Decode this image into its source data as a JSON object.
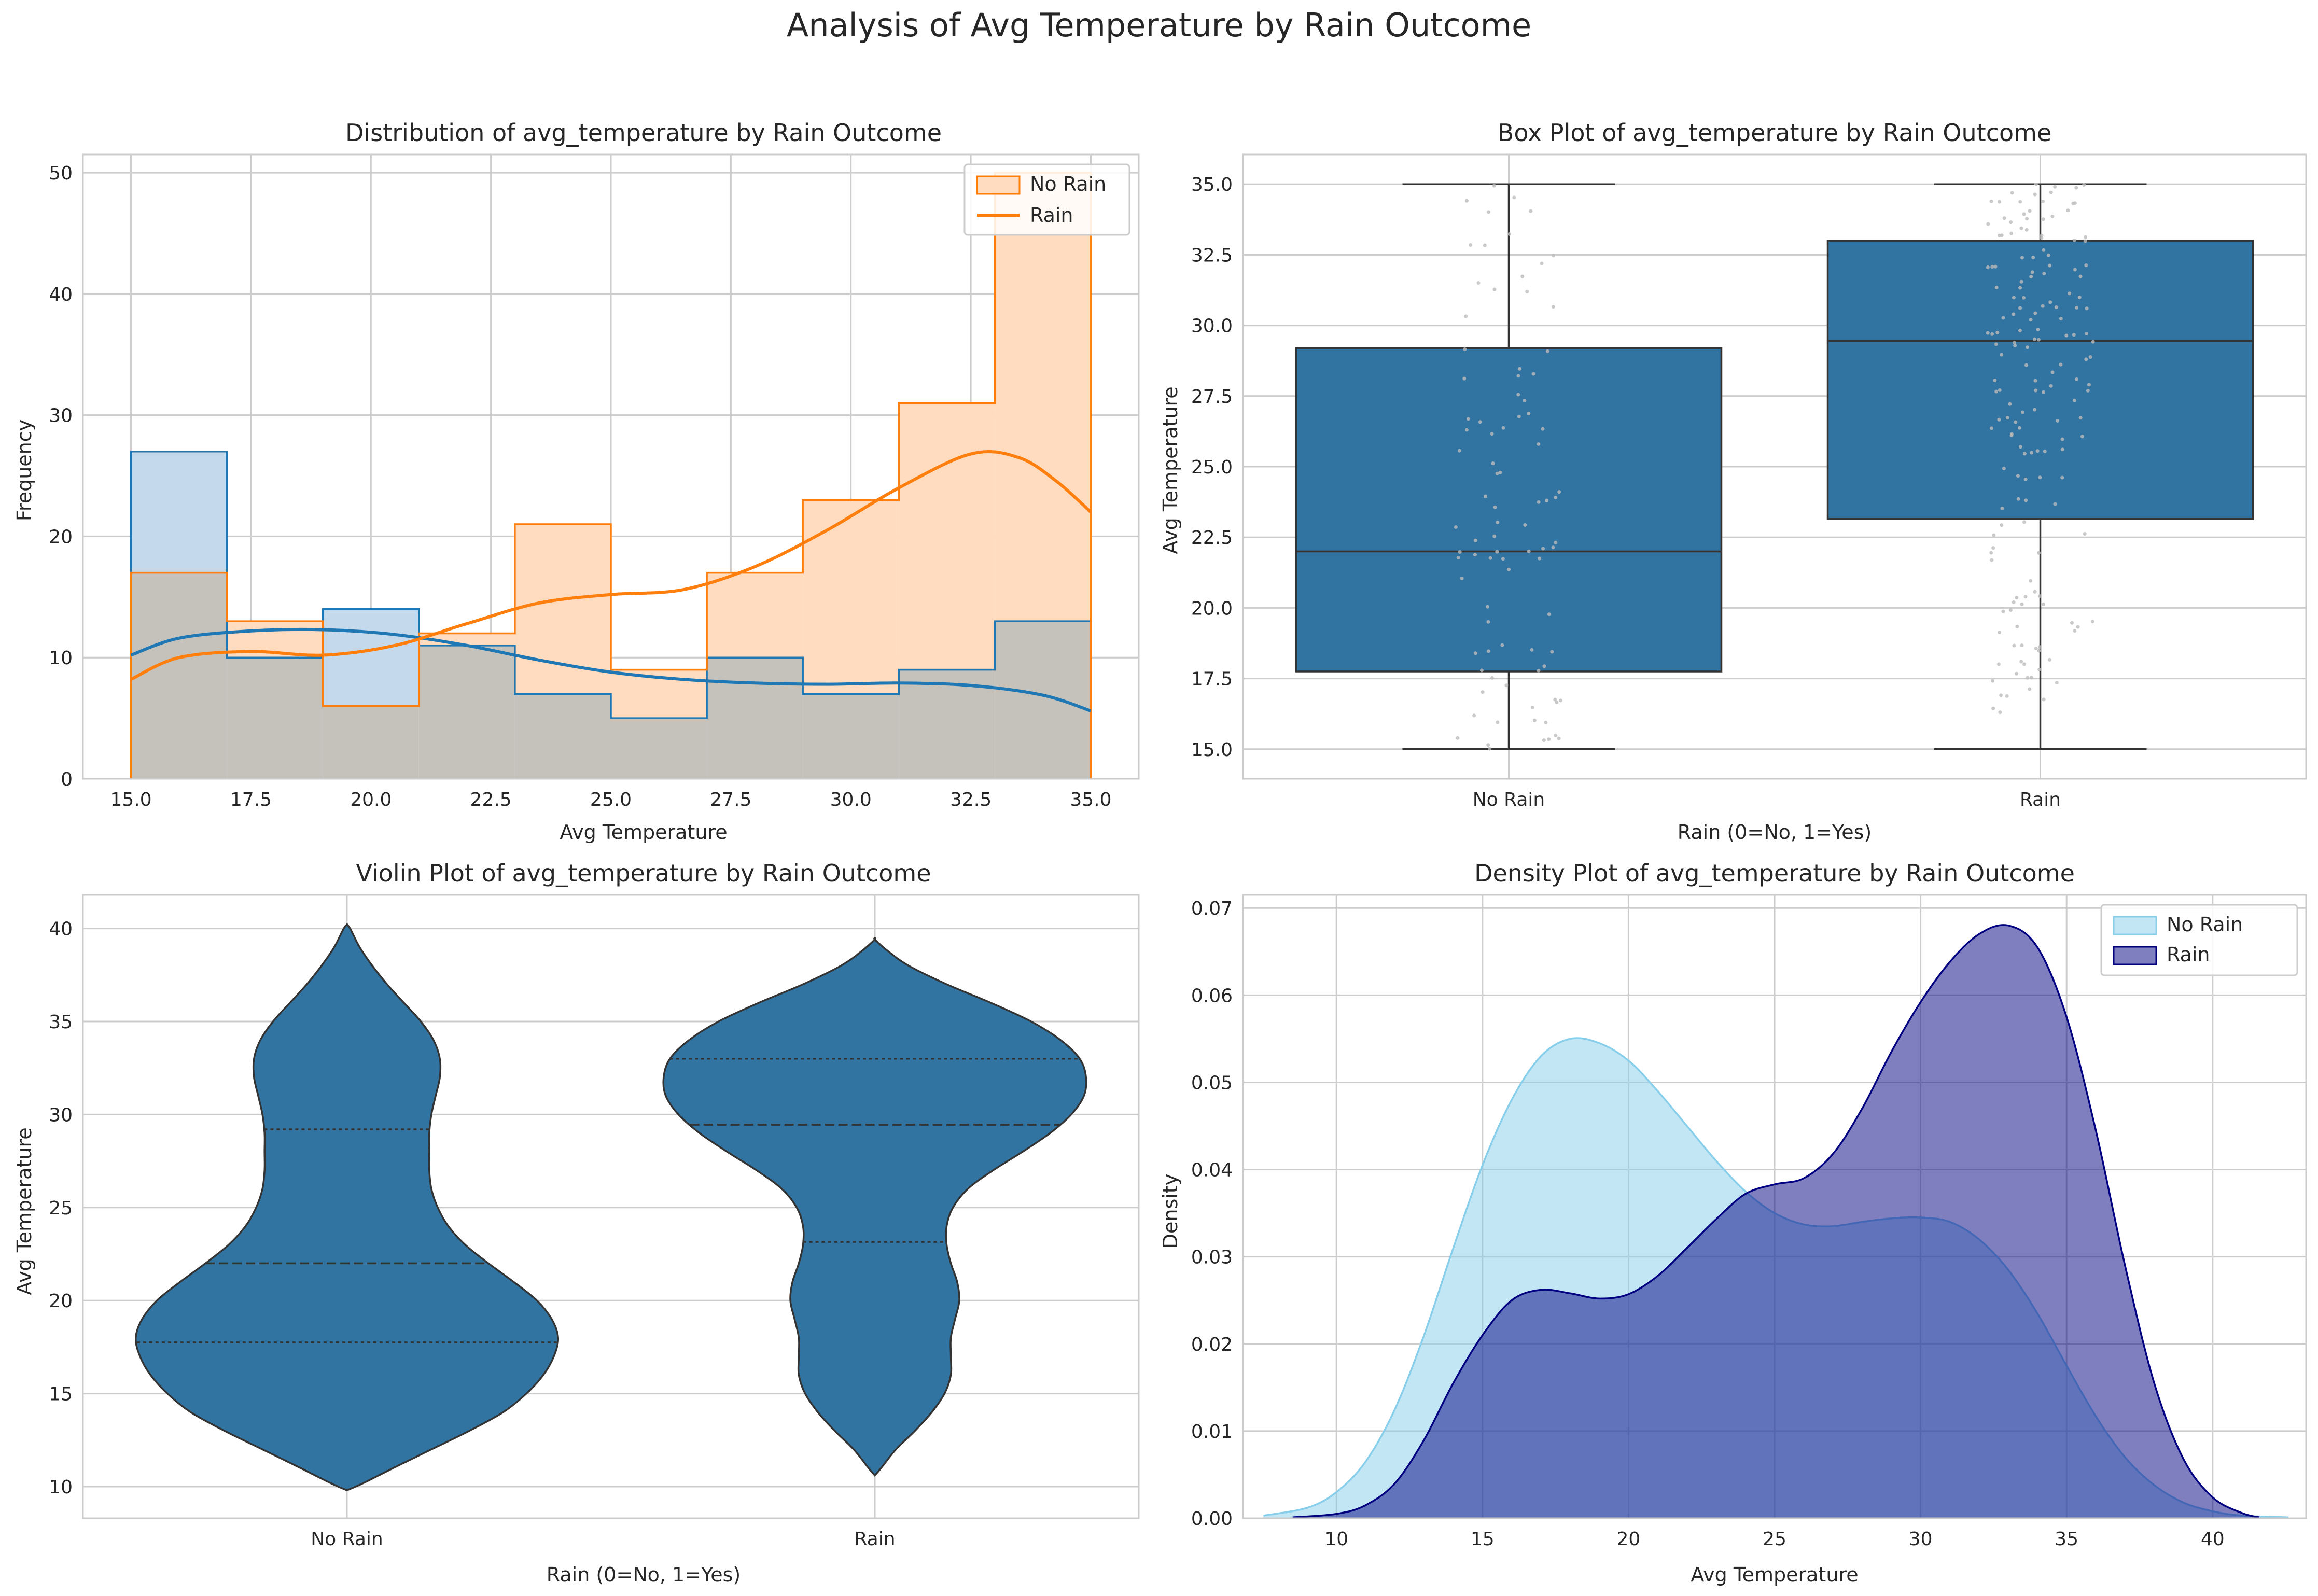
{
  "suptitle": "Analysis of Avg Temperature by Rain Outcome",
  "colors": {
    "hist_no_rain_fill": "#ffdcbf",
    "hist_no_rain_edge": "#ff7f0e",
    "hist_rain_fill": "#c5d9ec",
    "hist_rain_edge": "#1f77b4",
    "hist_overlap": "#c4c2bb",
    "box_fill": "#3274a1",
    "box_line": "#333333",
    "jitter": "#bbbbbb",
    "kde_no_rain_fill": "#87ceeb",
    "kde_no_rain_edge": "#87ceeb",
    "kde_rain_fill": "#000080",
    "kde_rain_edge": "#000080",
    "grid": "#cccccc",
    "text": "#262626"
  },
  "chart_data": [
    {
      "type": "bar",
      "title": "Distribution of avg_temperature by Rain Outcome",
      "xlabel": "Avg Temperature",
      "ylabel": "Frequency",
      "xlim": [
        14.0,
        36.0
      ],
      "ylim": [
        0,
        51.5
      ],
      "xticks": [
        "15.0",
        "17.5",
        "20.0",
        "22.5",
        "25.0",
        "27.5",
        "30.0",
        "32.5",
        "35.0"
      ],
      "yticks": [
        "0",
        "10",
        "20",
        "30",
        "40",
        "50"
      ],
      "bin_edges": [
        15,
        17,
        19,
        21,
        23,
        25,
        27,
        29,
        31,
        33,
        35
      ],
      "series": [
        {
          "name": "No Rain",
          "values": [
            27,
            10,
            14,
            11,
            7,
            5,
            10,
            7,
            9,
            13
          ],
          "kde": [
            [
              15,
              10.2
            ],
            [
              16,
              11.6
            ],
            [
              17.5,
              12.2
            ],
            [
              19,
              12.3
            ],
            [
              20.5,
              11.9
            ],
            [
              22,
              11.0
            ],
            [
              23.5,
              9.8
            ],
            [
              25,
              8.8
            ],
            [
              26.5,
              8.2
            ],
            [
              28,
              7.9
            ],
            [
              29.5,
              7.8
            ],
            [
              31,
              7.9
            ],
            [
              32.5,
              7.7
            ],
            [
              34,
              6.9
            ],
            [
              35,
              5.6
            ]
          ]
        },
        {
          "name": "Rain",
          "values": [
            17,
            13,
            6,
            12,
            21,
            9,
            17,
            23,
            31,
            50
          ],
          "kde": [
            [
              15,
              8.2
            ],
            [
              16,
              10.0
            ],
            [
              17.5,
              10.5
            ],
            [
              19,
              10.2
            ],
            [
              20.5,
              11.0
            ],
            [
              22,
              12.8
            ],
            [
              23.5,
              14.5
            ],
            [
              25,
              15.2
            ],
            [
              26.5,
              15.6
            ],
            [
              28,
              17.5
            ],
            [
              29.5,
              20.5
            ],
            [
              31,
              24.0
            ],
            [
              32.5,
              26.8
            ],
            [
              33.5,
              26.5
            ],
            [
              34.3,
              24.5
            ],
            [
              35,
              22.0
            ]
          ]
        }
      ],
      "legend": [
        {
          "label": "No Rain"
        },
        {
          "label": "Rain"
        }
      ],
      "legend_loc": "upper right",
      "grid": true
    },
    {
      "type": "box",
      "title": "Box Plot of avg_temperature by Rain Outcome",
      "xlabel": "Rain (0=No, 1=Yes)",
      "ylabel": "Avg Temperature",
      "categories": [
        "No Rain",
        "Rain"
      ],
      "ylim": [
        13.95,
        36.05
      ],
      "yticks": [
        "15.0",
        "17.5",
        "20.0",
        "22.5",
        "25.0",
        "27.5",
        "30.0",
        "32.5",
        "35.0"
      ],
      "boxes": [
        {
          "min": 15.0,
          "q1": 17.75,
          "median": 22.0,
          "q3": 29.2,
          "max": 35.0
        },
        {
          "min": 15.0,
          "q1": 23.15,
          "median": 29.45,
          "q3": 33.0,
          "max": 35.0
        }
      ],
      "grid": true
    },
    {
      "type": "violin",
      "title": "Violin Plot of avg_temperature by Rain Outcome",
      "xlabel": "Rain (0=No, 1=Yes)",
      "ylabel": "Avg Temperature",
      "categories": [
        "No Rain",
        "Rain"
      ],
      "ylim": [
        8.3,
        41.8
      ],
      "yticks": [
        "10",
        "15",
        "20",
        "25",
        "30",
        "35",
        "40"
      ],
      "violins": [
        {
          "q1": 17.75,
          "median": 22.0,
          "q3": 29.2,
          "profile": [
            [
              9.8,
              0.0
            ],
            [
              10.2,
              0.08
            ],
            [
              11.0,
              0.22
            ],
            [
              12.0,
              0.4
            ],
            [
              13.0,
              0.58
            ],
            [
              14.0,
              0.74
            ],
            [
              15.0,
              0.85
            ],
            [
              16.0,
              0.93
            ],
            [
              17.0,
              0.98
            ],
            [
              18.0,
              1.0
            ],
            [
              19.0,
              0.97
            ],
            [
              20.0,
              0.9
            ],
            [
              21.0,
              0.79
            ],
            [
              22.0,
              0.67
            ],
            [
              23.0,
              0.56
            ],
            [
              24.0,
              0.48
            ],
            [
              25.0,
              0.43
            ],
            [
              26.0,
              0.4
            ],
            [
              27.0,
              0.39
            ],
            [
              28.0,
              0.39
            ],
            [
              29.0,
              0.39
            ],
            [
              30.0,
              0.4
            ],
            [
              31.0,
              0.42
            ],
            [
              32.0,
              0.44
            ],
            [
              33.0,
              0.44
            ],
            [
              34.0,
              0.41
            ],
            [
              35.0,
              0.35
            ],
            [
              36.0,
              0.27
            ],
            [
              37.0,
              0.19
            ],
            [
              38.0,
              0.12
            ],
            [
              39.0,
              0.06
            ],
            [
              40.0,
              0.015
            ],
            [
              40.2,
              0.0
            ]
          ]
        },
        {
          "q1": 23.15,
          "median": 29.45,
          "q3": 33.0,
          "profile": [
            [
              10.6,
              0.0
            ],
            [
              11.0,
              0.03
            ],
            [
              12.0,
              0.1
            ],
            [
              13.0,
              0.19
            ],
            [
              14.0,
              0.27
            ],
            [
              15.0,
              0.33
            ],
            [
              16.0,
              0.36
            ],
            [
              17.0,
              0.36
            ],
            [
              18.0,
              0.36
            ],
            [
              19.0,
              0.38
            ],
            [
              20.0,
              0.4
            ],
            [
              21.0,
              0.39
            ],
            [
              22.0,
              0.36
            ],
            [
              23.0,
              0.34
            ],
            [
              24.0,
              0.34
            ],
            [
              25.0,
              0.37
            ],
            [
              26.0,
              0.44
            ],
            [
              27.0,
              0.56
            ],
            [
              28.0,
              0.7
            ],
            [
              29.0,
              0.83
            ],
            [
              30.0,
              0.93
            ],
            [
              31.0,
              0.99
            ],
            [
              32.0,
              1.0
            ],
            [
              33.0,
              0.97
            ],
            [
              34.0,
              0.88
            ],
            [
              35.0,
              0.74
            ],
            [
              36.0,
              0.55
            ],
            [
              37.0,
              0.34
            ],
            [
              38.0,
              0.16
            ],
            [
              38.8,
              0.06
            ],
            [
              39.4,
              0.0
            ]
          ]
        }
      ],
      "grid": true
    },
    {
      "type": "area",
      "title": "Density Plot of avg_temperature by Rain Outcome",
      "xlabel": "Avg Temperature",
      "ylabel": "Density",
      "xlim": [
        6.8,
        43.2
      ],
      "ylim": [
        0,
        0.0715
      ],
      "xticks": [
        "10",
        "15",
        "20",
        "25",
        "30",
        "35",
        "40"
      ],
      "yticks": [
        "0.00",
        "0.01",
        "0.02",
        "0.03",
        "0.04",
        "0.05",
        "0.06",
        "0.07"
      ],
      "series": [
        {
          "name": "No Rain",
          "points": [
            [
              7.5,
              0.0003
            ],
            [
              9,
              0.0012
            ],
            [
              10,
              0.003
            ],
            [
              11,
              0.0065
            ],
            [
              12,
              0.0125
            ],
            [
              13,
              0.021
            ],
            [
              14,
              0.031
            ],
            [
              15,
              0.0405
            ],
            [
              16,
              0.048
            ],
            [
              17,
              0.053
            ],
            [
              18,
              0.055
            ],
            [
              19,
              0.0545
            ],
            [
              20,
              0.0525
            ],
            [
              21,
              0.049
            ],
            [
              22,
              0.045
            ],
            [
              23,
              0.041
            ],
            [
              24,
              0.0375
            ],
            [
              25,
              0.035
            ],
            [
              26,
              0.0337
            ],
            [
              27,
              0.0335
            ],
            [
              28,
              0.034
            ],
            [
              29,
              0.0344
            ],
            [
              30,
              0.0345
            ],
            [
              31,
              0.034
            ],
            [
              32,
              0.032
            ],
            [
              33,
              0.0285
            ],
            [
              34,
              0.0235
            ],
            [
              35,
              0.0175
            ],
            [
              36,
              0.0117
            ],
            [
              37,
              0.007
            ],
            [
              38,
              0.0038
            ],
            [
              39,
              0.0018
            ],
            [
              40,
              0.0008
            ],
            [
              41,
              0.0003
            ],
            [
              42.6,
              0.0001
            ]
          ]
        },
        {
          "name": "Rain",
          "points": [
            [
              8.5,
              0.0001
            ],
            [
              10,
              0.0005
            ],
            [
              11,
              0.0015
            ],
            [
              12,
              0.004
            ],
            [
              13,
              0.009
            ],
            [
              14,
              0.0155
            ],
            [
              15,
              0.021
            ],
            [
              16,
              0.025
            ],
            [
              17,
              0.0262
            ],
            [
              18,
              0.0258
            ],
            [
              19,
              0.0252
            ],
            [
              20,
              0.0257
            ],
            [
              21,
              0.0278
            ],
            [
              22,
              0.031
            ],
            [
              23,
              0.0343
            ],
            [
              24,
              0.0372
            ],
            [
              25,
              0.0383
            ],
            [
              26,
              0.039
            ],
            [
              27,
              0.0418
            ],
            [
              28,
              0.047
            ],
            [
              29,
              0.0535
            ],
            [
              30,
              0.0592
            ],
            [
              31,
              0.0638
            ],
            [
              32,
              0.067
            ],
            [
              33,
              0.068
            ],
            [
              34,
              0.0655
            ],
            [
              35,
              0.0575
            ],
            [
              36,
              0.0445
            ],
            [
              37,
              0.029
            ],
            [
              38,
              0.0155
            ],
            [
              39,
              0.0068
            ],
            [
              40,
              0.0024
            ],
            [
              41,
              0.0006
            ],
            [
              41.6,
              0.0001
            ]
          ]
        }
      ],
      "legend": [
        {
          "label": "No Rain"
        },
        {
          "label": "Rain"
        }
      ],
      "legend_loc": "upper right",
      "grid": true
    }
  ]
}
